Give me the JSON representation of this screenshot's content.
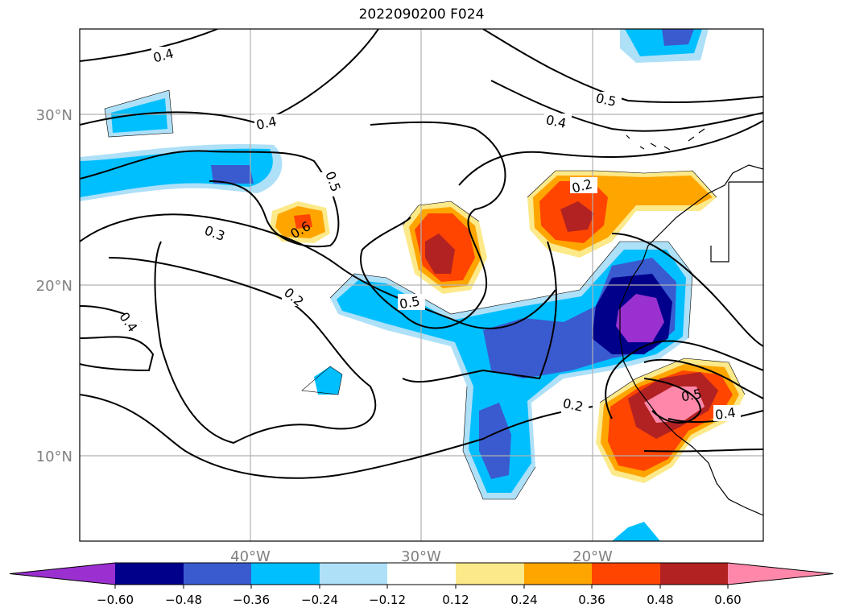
{
  "title": "2022090200 F024",
  "axes": {
    "lat_labels": [
      "30°N",
      "20°N",
      "10°N"
    ],
    "lon_labels": [
      "40°W",
      "30°W",
      "20°W"
    ]
  },
  "contour_labels": [
    "0.4",
    "0.4",
    "0.5",
    "0.4",
    "0.5",
    "0.6",
    "0.3",
    "0.2",
    "0.4",
    "0.5",
    "0.2",
    "0.2",
    "0.5",
    "0.4"
  ],
  "colorbar": {
    "ticks": [
      "−0.60",
      "−0.48",
      "−0.36",
      "−0.24",
      "−0.12",
      "0.12",
      "0.24",
      "0.36",
      "0.48",
      "0.60"
    ],
    "colors": [
      "#9b30d0",
      "#00008b",
      "#3a5bd0",
      "#00bfff",
      "#aee0f8",
      "#ffffff",
      "#fce98a",
      "#ffa500",
      "#ff4500",
      "#b22222",
      "#ff88aa"
    ]
  },
  "colors": {
    "gridline": "#b0b0b0",
    "contour": "#000000"
  }
}
